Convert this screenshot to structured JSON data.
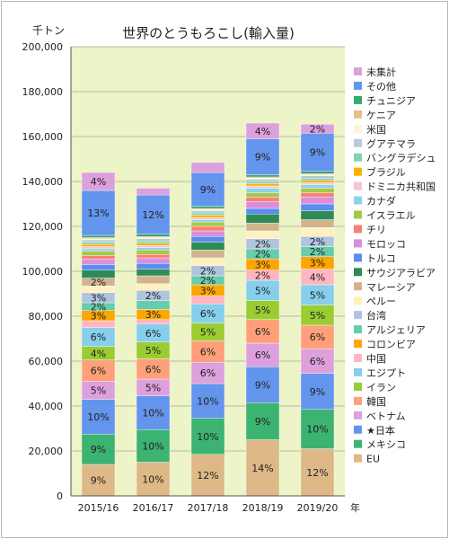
{
  "chart_data": {
    "type": "bar",
    "stacked": true,
    "title": "世界のとうもろこし(輸入量)",
    "ylabel": "千トン",
    "xlabel": "年",
    "ylim": [
      0,
      200000
    ],
    "y_ticks": [
      0,
      20000,
      40000,
      60000,
      80000,
      100000,
      120000,
      140000,
      160000,
      180000,
      200000
    ],
    "y_tick_labels": [
      "0",
      "20,000",
      "40,000",
      "60,000",
      "80,000",
      "100,000",
      "120,000",
      "140,000",
      "160,000",
      "180,000",
      "200,000"
    ],
    "categories": [
      "2015/16",
      "2016/17",
      "2017/18",
      "2018/19",
      "2019/20"
    ],
    "plot_background": "#ecf4c8",
    "grid": true,
    "legend_position": "right",
    "series": [
      {
        "name": "EU",
        "color": "#deb887",
        "values": [
          14000,
          15000,
          18500,
          25000,
          21000
        ],
        "labels": [
          "9%",
          "10%",
          "12%",
          "14%",
          "12%"
        ]
      },
      {
        "name": "メキシコ",
        "color": "#3cb371",
        "values": [
          13500,
          14500,
          16000,
          16500,
          17500
        ],
        "labels": [
          "9%",
          "10%",
          "10%",
          "9%",
          "10%"
        ]
      },
      {
        "name": "★日本",
        "color": "#6495ed",
        "values": [
          15500,
          15000,
          15500,
          16000,
          16000
        ],
        "labels": [
          "10%",
          "10%",
          "10%",
          "9%",
          "9%"
        ]
      },
      {
        "name": "ベトナム",
        "color": "#dda0dd",
        "values": [
          8000,
          7500,
          9500,
          10500,
          11000
        ],
        "labels": [
          "5%",
          "5%",
          "6%",
          "6%",
          "6%"
        ]
      },
      {
        "name": "韓国",
        "color": "#ffa07a",
        "values": [
          9500,
          9000,
          9500,
          10500,
          10500
        ],
        "labels": [
          "6%",
          "6%",
          "6%",
          "6%",
          "6%"
        ]
      },
      {
        "name": "イラン",
        "color": "#9acd32",
        "values": [
          6000,
          7500,
          8000,
          8500,
          9000
        ],
        "labels": [
          "4%",
          "5%",
          "5%",
          "5%",
          "5%"
        ]
      },
      {
        "name": "エジプト",
        "color": "#87ceeb",
        "values": [
          8500,
          8000,
          8500,
          9000,
          9000
        ],
        "labels": [
          "6%",
          "6%",
          "6%",
          "5%",
          "5%"
        ]
      },
      {
        "name": "中国",
        "color": "#ffb6c1",
        "values": [
          3000,
          2000,
          3500,
          4500,
          7000
        ],
        "labels": [
          "",
          "",
          "",
          "2%",
          "4%"
        ]
      },
      {
        "name": "コロンビア",
        "color": "#ffa500",
        "values": [
          4500,
          4500,
          5000,
          5000,
          5500
        ],
        "labels": [
          "3%",
          "3%",
          "3%",
          "3%",
          "3%"
        ]
      },
      {
        "name": "アルジェリア",
        "color": "#66cdaa",
        "values": [
          3500,
          4000,
          4000,
          4500,
          4500
        ],
        "labels": [
          "2%",
          "",
          "2%",
          "2%",
          "2%"
        ]
      },
      {
        "name": "台湾",
        "color": "#b0c4de",
        "values": [
          4500,
          4500,
          4500,
          4500,
          4500
        ],
        "labels": [
          "3%",
          "2%",
          "2%",
          "2%",
          "2%"
        ]
      },
      {
        "name": "ペルー",
        "color": "#fff0c0",
        "values": [
          3000,
          3000,
          3500,
          3500,
          4000
        ],
        "labels": [
          "",
          "",
          "",
          "",
          ""
        ]
      },
      {
        "name": "マレーシア",
        "color": "#d2b48c",
        "values": [
          3500,
          3500,
          3500,
          3500,
          3500
        ],
        "labels": [
          "2%",
          "",
          "",
          "",
          ""
        ]
      },
      {
        "name": "サウジアラビア",
        "color": "#2e8b57",
        "values": [
          3500,
          3000,
          3500,
          4000,
          4000
        ],
        "labels": [
          "",
          "",
          "",
          "",
          ""
        ]
      },
      {
        "name": "トルコ",
        "color": "#5b8def",
        "values": [
          2500,
          2500,
          2500,
          2500,
          3000
        ],
        "labels": [
          "",
          "",
          "",
          "",
          ""
        ]
      },
      {
        "name": "モロッコ",
        "color": "#da8fdb",
        "values": [
          2500,
          2500,
          2500,
          3000,
          3000
        ],
        "labels": [
          "",
          "",
          "",
          "",
          ""
        ]
      },
      {
        "name": "チリ",
        "color": "#fa8072",
        "values": [
          1500,
          1500,
          2000,
          2000,
          2000
        ],
        "labels": [
          "",
          "",
          "",
          "",
          ""
        ]
      },
      {
        "name": "イスラエル",
        "color": "#a2c94a",
        "values": [
          2000,
          2000,
          2000,
          2000,
          2000
        ],
        "labels": [
          "",
          "",
          "",
          "",
          ""
        ]
      },
      {
        "name": "カナダ",
        "color": "#8ad4e8",
        "values": [
          1000,
          1000,
          1000,
          2000,
          1500
        ],
        "labels": [
          "",
          "",
          "",
          "",
          ""
        ]
      },
      {
        "name": "ドミニカ共和国",
        "color": "#f7c5d2",
        "values": [
          1000,
          1000,
          1000,
          1000,
          1000
        ],
        "labels": [
          "",
          "",
          "",
          "",
          ""
        ]
      },
      {
        "name": "ブラジル",
        "color": "#ffb000",
        "values": [
          1000,
          1000,
          1000,
          1000,
          1000
        ],
        "labels": [
          "",
          "",
          "",
          "",
          ""
        ]
      },
      {
        "name": "バングラデシュ",
        "color": "#7fd4b0",
        "values": [
          1000,
          1000,
          1000,
          1000,
          1000
        ],
        "labels": [
          "",
          "",
          "",
          "",
          ""
        ]
      },
      {
        "name": "グアテマラ",
        "color": "#b8c8d8",
        "values": [
          1000,
          1000,
          1000,
          1000,
          1000
        ],
        "labels": [
          "",
          "",
          "",
          "",
          ""
        ]
      },
      {
        "name": "米国",
        "color": "#fff5d6",
        "values": [
          500,
          500,
          500,
          500,
          500
        ],
        "labels": [
          "",
          "",
          "",
          "",
          ""
        ]
      },
      {
        "name": "ケニア",
        "color": "#e3c08f",
        "values": [
          500,
          500,
          500,
          500,
          500
        ],
        "labels": [
          "",
          "",
          "",
          "",
          ""
        ]
      },
      {
        "name": "チュニジア",
        "color": "#35a96a",
        "values": [
          1000,
          1000,
          1000,
          1000,
          1000
        ],
        "labels": [
          "",
          "",
          "",
          "",
          ""
        ]
      },
      {
        "name": "その他",
        "color": "#6495ed",
        "values": [
          20000,
          17500,
          15000,
          16000,
          17000
        ],
        "labels": [
          "13%",
          "12%",
          "9%",
          "9%",
          "9%"
        ]
      },
      {
        "name": "未集計",
        "color": "#dda0dd",
        "values": [
          8000,
          3000,
          4500,
          7000,
          4000
        ],
        "labels": [
          "4%",
          "",
          "",
          "4%",
          "2%"
        ]
      }
    ]
  }
}
